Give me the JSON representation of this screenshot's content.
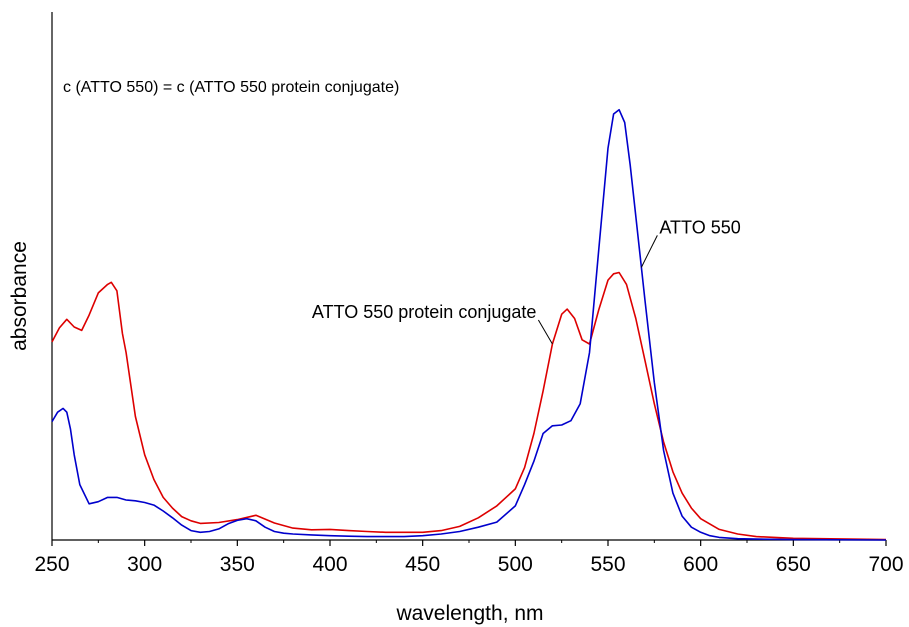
{
  "chart_data": {
    "type": "line",
    "title": "",
    "xlabel": "wavelength, nm",
    "ylabel": "absorbance",
    "xlim": [
      250,
      700
    ],
    "ylim": [
      0,
      1.0
    ],
    "grid": false,
    "yticks_shown": false,
    "x_ticks": [
      "250",
      "300",
      "350",
      "400",
      "450",
      "500",
      "550",
      "600",
      "650",
      "700"
    ],
    "annotation": "c (ATTO 550) = c (ATTO 550 protein conjugate)",
    "series": [
      {
        "name": "ATTO 550",
        "color": "#0000cc",
        "x": [
          250,
          253,
          256,
          258,
          260,
          262,
          265,
          270,
          275,
          280,
          285,
          290,
          295,
          300,
          305,
          310,
          315,
          320,
          325,
          330,
          335,
          340,
          345,
          350,
          355,
          360,
          365,
          370,
          375,
          380,
          390,
          400,
          410,
          420,
          430,
          440,
          450,
          460,
          470,
          480,
          490,
          500,
          505,
          510,
          515,
          520,
          525,
          530,
          535,
          540,
          545,
          550,
          553,
          556,
          559,
          562,
          565,
          570,
          575,
          580,
          585,
          590,
          595,
          600,
          605,
          610,
          620,
          630,
          650,
          700
        ],
        "y": [
          0.278,
          0.3,
          0.309,
          0.3,
          0.26,
          0.2,
          0.13,
          0.085,
          0.09,
          0.1,
          0.1,
          0.094,
          0.092,
          0.088,
          0.082,
          0.068,
          0.052,
          0.035,
          0.022,
          0.018,
          0.02,
          0.026,
          0.038,
          0.046,
          0.05,
          0.045,
          0.03,
          0.02,
          0.016,
          0.014,
          0.012,
          0.01,
          0.009,
          0.008,
          0.008,
          0.008,
          0.01,
          0.014,
          0.02,
          0.03,
          0.042,
          0.08,
          0.13,
          0.185,
          0.25,
          0.268,
          0.27,
          0.28,
          0.32,
          0.44,
          0.68,
          0.92,
          1.0,
          1.01,
          0.98,
          0.88,
          0.76,
          0.56,
          0.37,
          0.21,
          0.11,
          0.056,
          0.03,
          0.018,
          0.01,
          0.006,
          0.003,
          0.002,
          0.001,
          0.0
        ]
      },
      {
        "name": "ATTO 550 protein conjugate",
        "color": "#dd0000",
        "x": [
          250,
          254,
          258,
          262,
          266,
          270,
          275,
          280,
          282,
          285,
          288,
          290,
          292,
          295,
          300,
          305,
          310,
          315,
          320,
          325,
          330,
          340,
          350,
          360,
          370,
          380,
          390,
          400,
          410,
          420,
          430,
          440,
          450,
          460,
          470,
          480,
          490,
          500,
          505,
          510,
          515,
          520,
          525,
          528,
          532,
          536,
          540,
          545,
          550,
          553,
          556,
          560,
          565,
          570,
          575,
          580,
          585,
          590,
          595,
          600,
          610,
          620,
          630,
          650,
          700
        ],
        "y": [
          0.465,
          0.498,
          0.518,
          0.5,
          0.492,
          0.528,
          0.58,
          0.6,
          0.605,
          0.585,
          0.485,
          0.44,
          0.38,
          0.29,
          0.2,
          0.142,
          0.1,
          0.075,
          0.055,
          0.045,
          0.039,
          0.041,
          0.048,
          0.058,
          0.04,
          0.028,
          0.024,
          0.025,
          0.022,
          0.02,
          0.018,
          0.018,
          0.018,
          0.022,
          0.032,
          0.052,
          0.08,
          0.12,
          0.17,
          0.25,
          0.35,
          0.46,
          0.53,
          0.542,
          0.52,
          0.47,
          0.46,
          0.54,
          0.61,
          0.625,
          0.628,
          0.6,
          0.52,
          0.42,
          0.32,
          0.23,
          0.16,
          0.11,
          0.075,
          0.05,
          0.025,
          0.014,
          0.008,
          0.004,
          0.001
        ]
      }
    ],
    "callouts": [
      {
        "text": "ATTO 550",
        "series": 0,
        "anchor_x": 568
      },
      {
        "text": "ATTO 550 protein conjugate",
        "series": 1,
        "anchor_x": 520
      }
    ]
  }
}
